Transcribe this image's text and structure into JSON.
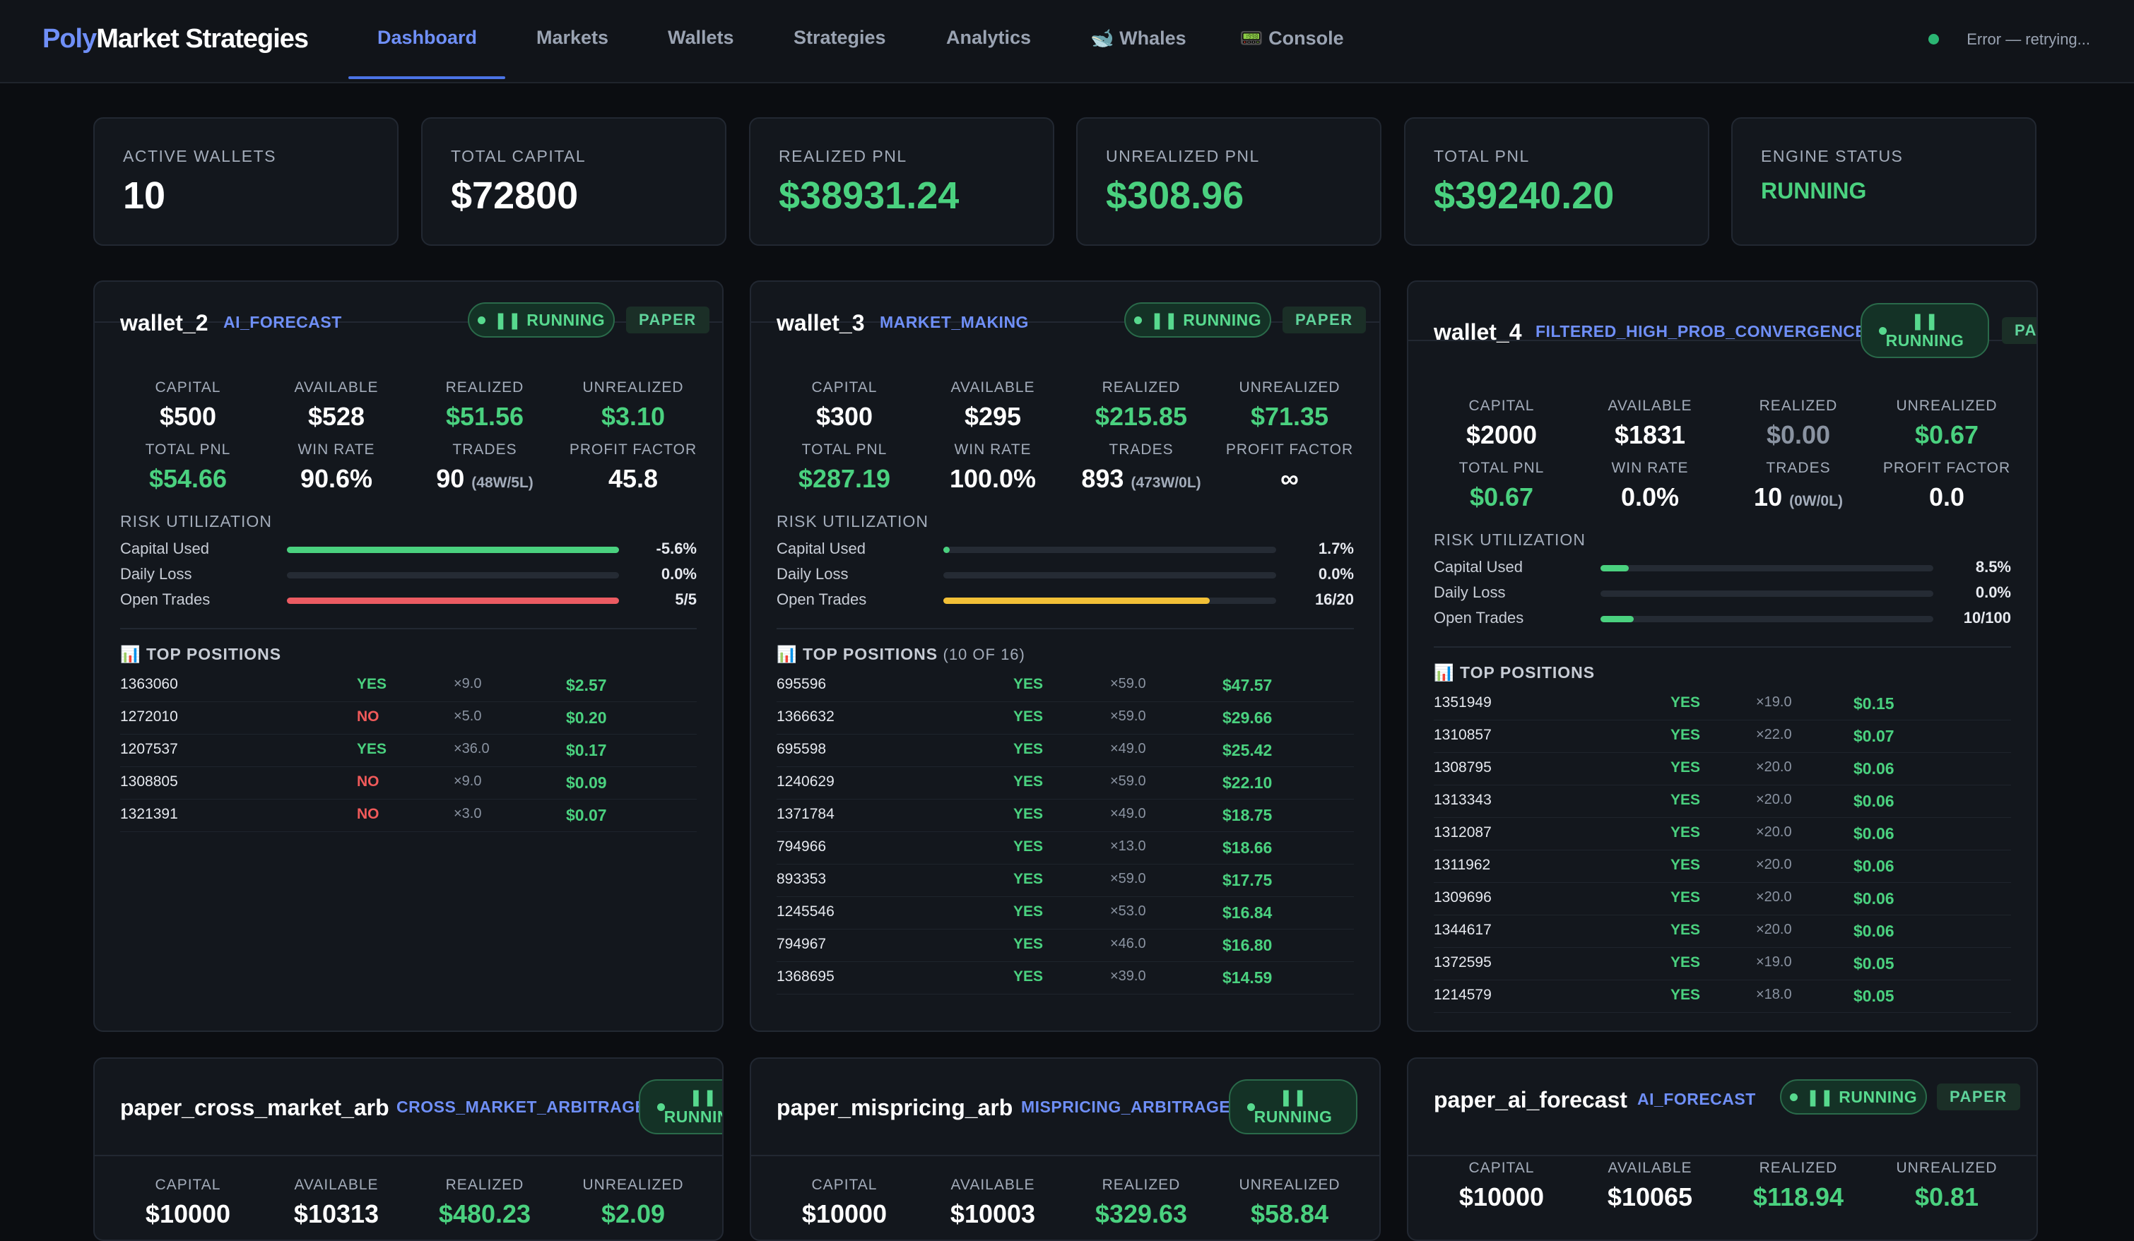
{
  "nav": {
    "brand_part1": "Poly",
    "brand_part2": "Market Strategies",
    "tabs": [
      "Dashboard",
      "Markets",
      "Wallets",
      "Strategies",
      "Analytics",
      "🐋 Whales",
      "📟 Console"
    ],
    "active_tab": "Dashboard",
    "status": "Error — retrying..."
  },
  "stats": [
    {
      "label": "ACTIVE WALLETS",
      "value": "10"
    },
    {
      "label": "TOTAL CAPITAL",
      "value": "$72800"
    },
    {
      "label": "REALIZED PNL",
      "value": "$38931.24"
    },
    {
      "label": "UNREALIZED PNL",
      "value": "$308.96"
    },
    {
      "label": "TOTAL PNL",
      "value": "$39240.20"
    },
    {
      "label": "ENGINE STATUS",
      "value": "RUNNING"
    }
  ],
  "metric_labels": {
    "capital": "CAPITAL",
    "available": "AVAILABLE",
    "realized": "REALIZED",
    "unrealized": "UNREALIZED",
    "total_pnl": "TOTAL PNL",
    "win_rate": "WIN RATE",
    "trades": "TRADES",
    "profit_factor": "PROFIT FACTOR"
  },
  "risk_labels": {
    "title": "RISK UTILIZATION",
    "capital_used": "Capital Used",
    "daily_loss": "Daily Loss",
    "open_trades": "Open Trades"
  },
  "top_positions_label": "📊 TOP POSITIONS",
  "pill": {
    "running": "❚❚ RUNNING",
    "running_line1": "❚❚",
    "running_line2": "RUNNING",
    "paper": "PAPER"
  },
  "wallets": [
    {
      "name": "wallet_2",
      "strategy": "AI_FORECAST",
      "capital": "$500",
      "available": "$528",
      "realized": "$51.56",
      "unrealized": "$3.10",
      "total_pnl": "$54.66",
      "win_rate": "90.6%",
      "trades": "90",
      "trades_sub": "(48W/5L)",
      "profit_factor": "45.8",
      "capital_used": "-5.6%",
      "capital_used_level": 1.0,
      "daily_loss": "0.0%",
      "daily_loss_level": 0,
      "open_trades": "5/5",
      "open_trades_level": 1.0,
      "positions_count": "",
      "positions": [
        {
          "id": "1363060",
          "side": "YES",
          "mult": "×9.0",
          "pnl": "$2.57"
        },
        {
          "id": "1272010",
          "side": "NO",
          "mult": "×5.0",
          "pnl": "$0.20"
        },
        {
          "id": "1207537",
          "side": "YES",
          "mult": "×36.0",
          "pnl": "$0.17"
        },
        {
          "id": "1308805",
          "side": "NO",
          "mult": "×9.0",
          "pnl": "$0.09"
        },
        {
          "id": "1321391",
          "side": "NO",
          "mult": "×3.0",
          "pnl": "$0.07"
        }
      ]
    },
    {
      "name": "wallet_3",
      "strategy": "MARKET_MAKING",
      "capital": "$300",
      "available": "$295",
      "realized": "$215.85",
      "unrealized": "$71.35",
      "total_pnl": "$287.19",
      "win_rate": "100.0%",
      "trades": "893",
      "trades_sub": "(473W/0L)",
      "profit_factor": "∞",
      "capital_used": "1.7%",
      "capital_used_level": 0.017,
      "daily_loss": "0.0%",
      "daily_loss_level": 0,
      "open_trades": "16/20",
      "open_trades_level": 0.8,
      "positions_count": "(10 OF 16)",
      "positions": [
        {
          "id": "695596",
          "side": "YES",
          "mult": "×59.0",
          "pnl": "$47.57"
        },
        {
          "id": "1366632",
          "side": "YES",
          "mult": "×59.0",
          "pnl": "$29.66"
        },
        {
          "id": "695598",
          "side": "YES",
          "mult": "×49.0",
          "pnl": "$25.42"
        },
        {
          "id": "1240629",
          "side": "YES",
          "mult": "×59.0",
          "pnl": "$22.10"
        },
        {
          "id": "1371784",
          "side": "YES",
          "mult": "×49.0",
          "pnl": "$18.75"
        },
        {
          "id": "794966",
          "side": "YES",
          "mult": "×13.0",
          "pnl": "$18.66"
        },
        {
          "id": "893353",
          "side": "YES",
          "mult": "×59.0",
          "pnl": "$17.75"
        },
        {
          "id": "1245546",
          "side": "YES",
          "mult": "×53.0",
          "pnl": "$16.84"
        },
        {
          "id": "794967",
          "side": "YES",
          "mult": "×46.0",
          "pnl": "$16.80"
        },
        {
          "id": "1368695",
          "side": "YES",
          "mult": "×39.0",
          "pnl": "$14.59"
        }
      ]
    },
    {
      "name": "wallet_4",
      "strategy": "FILTERED_HIGH_PROB_CONVERGENCE",
      "capital": "$2000",
      "available": "$1831",
      "realized": "$0.00",
      "unrealized": "$0.67",
      "total_pnl": "$0.67",
      "win_rate": "0.0%",
      "trades": "10",
      "trades_sub": "(0W/0L)",
      "profit_factor": "0.0",
      "capital_used": "8.5%",
      "capital_used_level": 0.085,
      "daily_loss": "0.0%",
      "daily_loss_level": 0,
      "open_trades": "10/100",
      "open_trades_level": 0.1,
      "positions_count": "",
      "positions": [
        {
          "id": "1351949",
          "side": "YES",
          "mult": "×19.0",
          "pnl": "$0.15"
        },
        {
          "id": "1310857",
          "side": "YES",
          "mult": "×22.0",
          "pnl": "$0.07"
        },
        {
          "id": "1308795",
          "side": "YES",
          "mult": "×20.0",
          "pnl": "$0.06"
        },
        {
          "id": "1313343",
          "side": "YES",
          "mult": "×20.0",
          "pnl": "$0.06"
        },
        {
          "id": "1312087",
          "side": "YES",
          "mult": "×20.0",
          "pnl": "$0.06"
        },
        {
          "id": "1311962",
          "side": "YES",
          "mult": "×20.0",
          "pnl": "$0.06"
        },
        {
          "id": "1309696",
          "side": "YES",
          "mult": "×20.0",
          "pnl": "$0.06"
        },
        {
          "id": "1344617",
          "side": "YES",
          "mult": "×20.0",
          "pnl": "$0.06"
        },
        {
          "id": "1372595",
          "side": "YES",
          "mult": "×19.0",
          "pnl": "$0.05"
        },
        {
          "id": "1214579",
          "side": "YES",
          "mult": "×18.0",
          "pnl": "$0.05"
        }
      ]
    },
    {
      "name": "paper_cross_market_arb",
      "strategy": "CROSS_MARKET_ARBITRAGE",
      "capital": "$10000",
      "available": "$10313",
      "realized": "$480.23",
      "unrealized": "$2.09"
    },
    {
      "name": "paper_mispricing_arb",
      "strategy": "MISPRICING_ARBITRAGE",
      "capital": "$10000",
      "available": "$10003",
      "realized": "$329.63",
      "unrealized": "$58.84"
    },
    {
      "name": "paper_ai_forecast",
      "strategy": "AI_FORECAST",
      "capital": "$10000",
      "available": "$10065",
      "realized": "$118.94",
      "unrealized": "$0.81"
    }
  ]
}
